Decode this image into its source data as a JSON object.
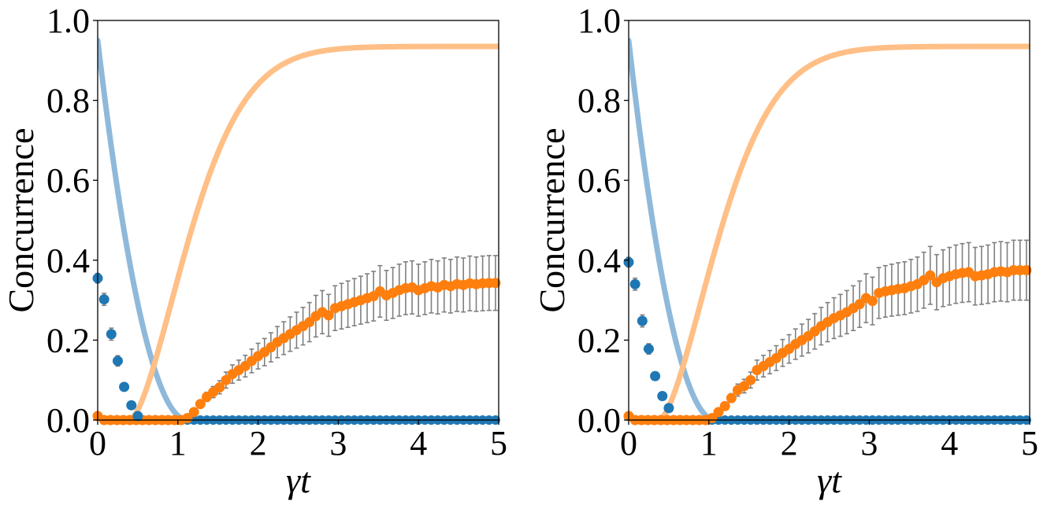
{
  "chart_data": [
    {
      "type": "line+scatter",
      "ylabel": "Concurrence",
      "xlabel": "γt",
      "xlim": [
        0,
        5
      ],
      "ylim": [
        0.0,
        1.0
      ],
      "xticks": [
        "0",
        "1",
        "2",
        "3",
        "4",
        "5"
      ],
      "yticks": [
        "0.0",
        "0.2",
        "0.4",
        "0.6",
        "0.8",
        "1.0"
      ],
      "colors": {
        "blue": "#1f77b4",
        "orange": "#ff7f0e",
        "blue_line": "#8fb9da",
        "orange_line": "#ffbf86",
        "errbar": "#808080"
      },
      "theory_blue": {
        "name": "theory-blue",
        "y0": 0.95,
        "t_zero": 1.12
      },
      "theory_orange": {
        "name": "theory-orange",
        "t_start": 0.4,
        "asymptote": 0.935,
        "rate": 1.05
      },
      "points_blue": {
        "x": [
          0.0,
          0.08,
          0.17,
          0.25,
          0.33,
          0.42,
          0.5
        ],
        "y": [
          0.355,
          0.302,
          0.215,
          0.148,
          0.083,
          0.037,
          0.01
        ],
        "err": [
          0.012,
          0.015,
          0.015,
          0.013,
          0.01,
          0.008,
          0.005
        ]
      },
      "points_orange": {
        "dx": 0.08,
        "y": [
          0.01,
          0.0,
          0.0,
          0.0,
          0.0,
          0.0,
          0.0,
          0.0,
          0.0,
          0.0,
          0.0,
          0.0,
          0.0,
          0.0,
          0.005,
          0.02,
          0.04,
          0.058,
          0.07,
          0.082,
          0.1,
          0.115,
          0.125,
          0.135,
          0.148,
          0.16,
          0.17,
          0.182,
          0.195,
          0.205,
          0.215,
          0.225,
          0.235,
          0.245,
          0.26,
          0.27,
          0.262,
          0.28,
          0.285,
          0.29,
          0.295,
          0.3,
          0.305,
          0.31,
          0.322,
          0.312,
          0.318,
          0.325,
          0.33,
          0.332,
          0.325,
          0.33,
          0.335,
          0.332,
          0.338,
          0.335,
          0.34,
          0.338,
          0.342,
          0.34,
          0.342,
          0.343,
          0.343
        ],
        "err_scale": 0.2
      }
    },
    {
      "type": "line+scatter",
      "ylabel": "Concurrence",
      "xlabel": "γt",
      "xlim": [
        0,
        5
      ],
      "ylim": [
        0.0,
        1.0
      ],
      "xticks": [
        "0",
        "1",
        "2",
        "3",
        "4",
        "5"
      ],
      "yticks": [
        "0.0",
        "0.2",
        "0.4",
        "0.6",
        "0.8",
        "1.0"
      ],
      "colors": {
        "blue": "#1f77b4",
        "orange": "#ff7f0e",
        "blue_line": "#8fb9da",
        "orange_line": "#ffbf86",
        "errbar": "#808080"
      },
      "theory_blue": {
        "name": "theory-blue",
        "y0": 0.95,
        "t_zero": 1.08
      },
      "theory_orange": {
        "name": "theory-orange",
        "t_start": 0.38,
        "asymptote": 0.935,
        "rate": 1.05
      },
      "points_blue": {
        "x": [
          0.0,
          0.08,
          0.17,
          0.25,
          0.33,
          0.42,
          0.5
        ],
        "y": [
          0.395,
          0.34,
          0.248,
          0.178,
          0.11,
          0.06,
          0.03
        ],
        "err": [
          0.012,
          0.015,
          0.015,
          0.013,
          0.01,
          0.008,
          0.006
        ]
      },
      "points_orange": {
        "dx": 0.08,
        "y": [
          0.01,
          0.0,
          0.0,
          0.0,
          0.0,
          0.0,
          0.0,
          0.0,
          0.0,
          0.0,
          0.0,
          0.0,
          0.0,
          0.005,
          0.02,
          0.035,
          0.055,
          0.075,
          0.085,
          0.1,
          0.125,
          0.135,
          0.145,
          0.155,
          0.168,
          0.178,
          0.19,
          0.2,
          0.21,
          0.222,
          0.235,
          0.245,
          0.255,
          0.262,
          0.27,
          0.28,
          0.29,
          0.305,
          0.298,
          0.318,
          0.322,
          0.325,
          0.328,
          0.33,
          0.335,
          0.34,
          0.35,
          0.362,
          0.345,
          0.355,
          0.36,
          0.365,
          0.368,
          0.37,
          0.36,
          0.362,
          0.365,
          0.37,
          0.372,
          0.37,
          0.375,
          0.375,
          0.375
        ],
        "err_scale": 0.2
      }
    }
  ]
}
